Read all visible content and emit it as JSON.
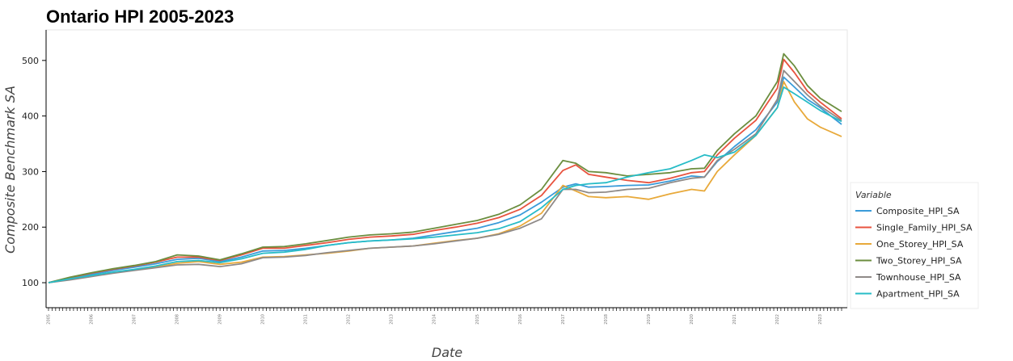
{
  "chart_data": {
    "type": "line",
    "title": "Ontario HPI 2005-2023",
    "xlabel": "Date",
    "ylabel": "Composite Benchmark SA",
    "ylim": [
      55,
      555
    ],
    "yticks": [
      100,
      200,
      300,
      400,
      500
    ],
    "xlim": [
      2005.0,
      2023.5
    ],
    "x_unit": "year",
    "legend": {
      "title": "Variable",
      "position": "right"
    },
    "grid": false,
    "series": [
      {
        "name": "Composite_HPI_SA",
        "color": "#3a9bd9",
        "x": [
          2005.0,
          2005.5,
          2006.0,
          2006.5,
          2007.0,
          2007.5,
          2008.0,
          2008.5,
          2009.0,
          2009.5,
          2010.0,
          2010.5,
          2011.0,
          2011.5,
          2012.0,
          2012.5,
          2013.0,
          2013.5,
          2014.0,
          2014.5,
          2015.0,
          2015.5,
          2016.0,
          2016.5,
          2017.0,
          2017.3,
          2017.6,
          2018.0,
          2018.5,
          2019.0,
          2019.5,
          2020.0,
          2020.3,
          2020.6,
          2021.0,
          2021.5,
          2022.0,
          2022.15,
          2022.4,
          2022.7,
          2023.0,
          2023.5
        ],
        "y": [
          100,
          108,
          115,
          122,
          128,
          134,
          142,
          144,
          138,
          146,
          157,
          158,
          162,
          167,
          172,
          175,
          177,
          180,
          186,
          192,
          198,
          208,
          222,
          245,
          272,
          278,
          272,
          273,
          275,
          276,
          283,
          292,
          290,
          318,
          345,
          375,
          425,
          470,
          452,
          430,
          415,
          385
        ]
      },
      {
        "name": "Single_Family_HPI_SA",
        "color": "#e8533f",
        "x": [
          2005.0,
          2005.5,
          2006.0,
          2006.5,
          2007.0,
          2007.5,
          2008.0,
          2008.5,
          2009.0,
          2009.5,
          2010.0,
          2010.5,
          2011.0,
          2011.5,
          2012.0,
          2012.5,
          2013.0,
          2013.5,
          2014.0,
          2014.5,
          2015.0,
          2015.5,
          2016.0,
          2016.5,
          2017.0,
          2017.3,
          2017.6,
          2018.0,
          2018.5,
          2019.0,
          2019.5,
          2020.0,
          2020.3,
          2020.6,
          2021.0,
          2021.5,
          2022.0,
          2022.15,
          2022.4,
          2022.7,
          2023.0,
          2023.5
        ],
        "y": [
          100,
          109,
          117,
          124,
          130,
          137,
          146,
          146,
          140,
          150,
          162,
          162,
          167,
          172,
          178,
          182,
          184,
          187,
          194,
          200,
          207,
          217,
          232,
          257,
          302,
          312,
          295,
          290,
          284,
          280,
          288,
          298,
          300,
          330,
          360,
          392,
          450,
          502,
          478,
          445,
          425,
          395
        ]
      },
      {
        "name": "One_Storey_HPI_SA",
        "color": "#e8a93a",
        "x": [
          2005.0,
          2005.5,
          2006.0,
          2006.5,
          2007.0,
          2007.5,
          2008.0,
          2008.5,
          2009.0,
          2009.5,
          2010.0,
          2010.5,
          2011.0,
          2011.5,
          2012.0,
          2012.5,
          2013.0,
          2013.5,
          2014.0,
          2014.5,
          2015.0,
          2015.5,
          2016.0,
          2016.5,
          2017.0,
          2017.3,
          2017.6,
          2018.0,
          2018.5,
          2019.0,
          2019.5,
          2020.0,
          2020.3,
          2020.6,
          2021.0,
          2021.5,
          2022.0,
          2022.15,
          2022.4,
          2022.7,
          2023.0,
          2023.5
        ],
        "y": [
          100,
          106,
          112,
          118,
          123,
          128,
          135,
          138,
          133,
          137,
          146,
          147,
          150,
          153,
          157,
          162,
          164,
          166,
          171,
          176,
          180,
          188,
          202,
          225,
          275,
          265,
          255,
          253,
          255,
          250,
          260,
          268,
          265,
          300,
          330,
          365,
          415,
          462,
          425,
          395,
          380,
          363
        ]
      },
      {
        "name": "Two_Storey_HPI_SA",
        "color": "#6b8e3f",
        "x": [
          2005.0,
          2005.5,
          2006.0,
          2006.5,
          2007.0,
          2007.5,
          2008.0,
          2008.5,
          2009.0,
          2009.5,
          2010.0,
          2010.5,
          2011.0,
          2011.5,
          2012.0,
          2012.5,
          2013.0,
          2013.5,
          2014.0,
          2014.5,
          2015.0,
          2015.5,
          2016.0,
          2016.5,
          2017.0,
          2017.3,
          2017.6,
          2018.0,
          2018.5,
          2019.0,
          2019.5,
          2020.0,
          2020.3,
          2020.6,
          2021.0,
          2021.5,
          2022.0,
          2022.15,
          2022.4,
          2022.7,
          2023.0,
          2023.5
        ],
        "y": [
          100,
          110,
          118,
          125,
          131,
          138,
          150,
          148,
          141,
          152,
          164,
          165,
          170,
          176,
          182,
          186,
          188,
          191,
          198,
          205,
          212,
          223,
          240,
          268,
          320,
          315,
          300,
          298,
          292,
          295,
          298,
          305,
          306,
          338,
          368,
          400,
          462,
          512,
          490,
          455,
          432,
          408
        ]
      },
      {
        "name": "Townhouse_HPI_SA",
        "color": "#8f8a88",
        "x": [
          2005.0,
          2005.5,
          2006.0,
          2006.5,
          2007.0,
          2007.5,
          2008.0,
          2008.5,
          2009.0,
          2009.5,
          2010.0,
          2010.5,
          2011.0,
          2011.5,
          2012.0,
          2012.5,
          2013.0,
          2013.5,
          2014.0,
          2014.5,
          2015.0,
          2015.5,
          2016.0,
          2016.5,
          2017.0,
          2017.3,
          2017.6,
          2018.0,
          2018.5,
          2019.0,
          2019.5,
          2020.0,
          2020.3,
          2020.6,
          2021.0,
          2021.5,
          2022.0,
          2022.15,
          2022.4,
          2022.7,
          2023.0,
          2023.5
        ],
        "y": [
          100,
          105,
          111,
          117,
          122,
          127,
          132,
          133,
          129,
          134,
          145,
          146,
          149,
          154,
          158,
          162,
          164,
          166,
          170,
          175,
          180,
          187,
          198,
          215,
          268,
          268,
          262,
          263,
          268,
          270,
          280,
          288,
          290,
          320,
          340,
          368,
          430,
          482,
          462,
          438,
          418,
          392
        ]
      },
      {
        "name": "Apartment_HPI_SA",
        "color": "#27bcc7",
        "x": [
          2005.0,
          2005.5,
          2006.0,
          2006.5,
          2007.0,
          2007.5,
          2008.0,
          2008.5,
          2009.0,
          2009.5,
          2010.0,
          2010.5,
          2011.0,
          2011.5,
          2012.0,
          2012.5,
          2013.0,
          2013.5,
          2014.0,
          2014.5,
          2015.0,
          2015.5,
          2016.0,
          2016.5,
          2017.0,
          2017.3,
          2017.6,
          2018.0,
          2018.5,
          2019.0,
          2019.5,
          2020.0,
          2020.3,
          2020.6,
          2021.0,
          2021.5,
          2022.0,
          2022.15,
          2022.4,
          2022.7,
          2023.0,
          2023.5
        ],
        "y": [
          100,
          107,
          113,
          119,
          124,
          130,
          138,
          140,
          136,
          143,
          153,
          155,
          160,
          167,
          172,
          175,
          177,
          179,
          182,
          186,
          190,
          197,
          210,
          235,
          268,
          275,
          278,
          280,
          290,
          298,
          305,
          320,
          330,
          325,
          335,
          365,
          415,
          452,
          440,
          425,
          410,
          390
        ]
      }
    ]
  }
}
